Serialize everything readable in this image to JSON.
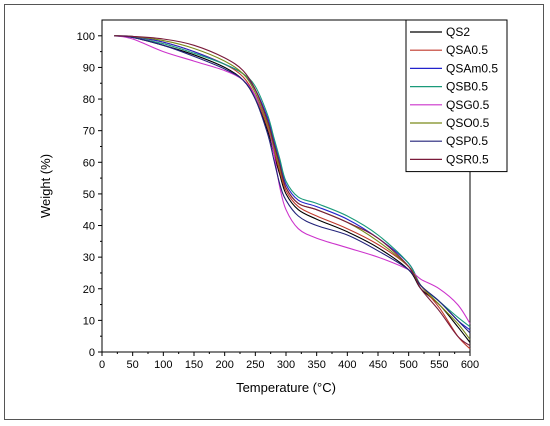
{
  "chart_data": {
    "type": "line",
    "title": "",
    "xlabel": "Temperature (°C)",
    "ylabel": "Weight (%)",
    "xlim": [
      0,
      600
    ],
    "ylim": [
      0,
      105
    ],
    "xticks": [
      0,
      50,
      100,
      150,
      200,
      250,
      300,
      350,
      400,
      450,
      500,
      550,
      600
    ],
    "yticks": [
      0,
      10,
      20,
      30,
      40,
      50,
      60,
      70,
      80,
      90,
      100
    ],
    "grid": false,
    "legend_position": "top-right",
    "x": [
      20,
      50,
      100,
      150,
      200,
      230,
      250,
      270,
      280,
      290,
      300,
      320,
      350,
      400,
      450,
      500,
      520,
      550,
      580,
      600
    ],
    "series": [
      {
        "name": "QS2",
        "color": "#000000",
        "values": [
          100,
          99.5,
          97,
          94,
          90,
          86,
          80,
          70,
          63,
          56,
          50,
          45,
          42,
          38,
          33,
          26,
          20,
          15,
          8,
          3
        ]
      },
      {
        "name": "QSA0.5",
        "color": "#c0392b",
        "values": [
          100,
          99.7,
          98,
          95,
          91,
          87,
          81,
          71,
          64,
          57,
          51,
          46,
          43,
          39,
          34,
          27,
          21,
          14,
          5,
          1
        ]
      },
      {
        "name": "QSAm0.5",
        "color": "#2222cc",
        "values": [
          100,
          99.8,
          98,
          95,
          91,
          88,
          83,
          74,
          67,
          60,
          53,
          48,
          46,
          42,
          36,
          28,
          21,
          16,
          10,
          7
        ]
      },
      {
        "name": "QSB0.5",
        "color": "#1a9a7a",
        "values": [
          100,
          99.5,
          97.5,
          94.5,
          91,
          88,
          84,
          75,
          68,
          61,
          54,
          49,
          47,
          43,
          37,
          28,
          21,
          16,
          11,
          8
        ]
      },
      {
        "name": "QSG0.5",
        "color": "#cc33cc",
        "values": [
          100,
          99,
          95,
          92,
          89,
          86,
          81,
          72,
          63,
          52,
          45,
          39,
          36,
          33,
          30,
          26,
          23,
          20,
          15,
          9
        ]
      },
      {
        "name": "QSO0.5",
        "color": "#7a8a1a",
        "values": [
          100,
          99.8,
          98.5,
          96,
          92,
          88,
          82,
          72,
          65,
          58,
          52,
          47,
          45,
          41,
          35,
          27,
          21,
          15,
          9,
          4
        ]
      },
      {
        "name": "QSP0.5",
        "color": "#22227a",
        "values": [
          100,
          99.5,
          97,
          93.5,
          89.5,
          86,
          80,
          69,
          61,
          53,
          48,
          43,
          40,
          37,
          32,
          26,
          21,
          16,
          10,
          6
        ]
      },
      {
        "name": "QSR0.5",
        "color": "#7a1a3a",
        "values": [
          100,
          99.8,
          99,
          97,
          93,
          89,
          83,
          73,
          66,
          59,
          52,
          47,
          45,
          41,
          36,
          27,
          20,
          13,
          5,
          2
        ]
      }
    ]
  }
}
